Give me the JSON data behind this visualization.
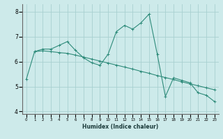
{
  "xlabel": "Humidex (Indice chaleur)",
  "line1_x": [
    0,
    1,
    2,
    3,
    4,
    5,
    6,
    7,
    8,
    9,
    10,
    11,
    12,
    13,
    14,
    15,
    16,
    17,
    18,
    19,
    20,
    21,
    22,
    23
  ],
  "line1_y": [
    5.3,
    6.4,
    6.5,
    6.5,
    6.65,
    6.8,
    6.45,
    6.15,
    5.95,
    5.85,
    6.3,
    7.2,
    7.45,
    7.3,
    7.55,
    7.9,
    6.3,
    4.6,
    5.35,
    5.25,
    5.15,
    4.75,
    4.65,
    4.4
  ],
  "line2_x": [
    1,
    2,
    3,
    4,
    5,
    6,
    7,
    8,
    9,
    10,
    11,
    12,
    13,
    14,
    15,
    16,
    17,
    18,
    19,
    20,
    21,
    22,
    23
  ],
  "line2_y": [
    6.4,
    6.43,
    6.4,
    6.36,
    6.33,
    6.26,
    6.18,
    6.1,
    6.02,
    5.94,
    5.86,
    5.78,
    5.7,
    5.61,
    5.53,
    5.44,
    5.36,
    5.28,
    5.19,
    5.11,
    5.03,
    4.95,
    4.87
  ],
  "line_color": "#2e8b7a",
  "bg_color": "#cdeaea",
  "grid_color": "#a8d0d0",
  "ylim": [
    3.9,
    8.3
  ],
  "xlim": [
    -0.5,
    23.5
  ],
  "yticks": [
    4,
    5,
    6,
    7,
    8
  ],
  "xticks": [
    0,
    1,
    2,
    3,
    4,
    5,
    6,
    7,
    8,
    9,
    10,
    11,
    12,
    13,
    14,
    15,
    16,
    17,
    18,
    19,
    20,
    21,
    22,
    23
  ]
}
